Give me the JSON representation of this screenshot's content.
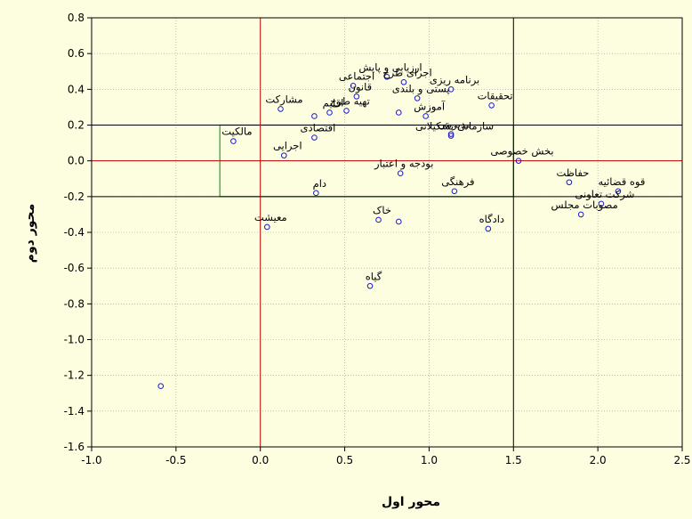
{
  "chart_data": {
    "type": "scatter",
    "title": "",
    "xlabel": "محور اول",
    "ylabel": "محور دوم",
    "xlim": [
      -1.0,
      2.5
    ],
    "ylim": [
      -1.6,
      0.8
    ],
    "x_ticks": [
      "-1.0",
      "-0.5",
      "0.0",
      "0.5",
      "1.0",
      "1.5",
      "2.0",
      "2.5"
    ],
    "y_ticks": [
      "0.8",
      "0.6",
      "0.4",
      "0.2",
      "0.0",
      "-0.2",
      "-0.4",
      "-0.6",
      "-0.8",
      "-1.0",
      "-1.2",
      "-1.4",
      "-1.6"
    ],
    "grid": true,
    "reference_lines": {
      "vertical_red": 0.0,
      "horizontal_red": 0.0,
      "vertical_black": 1.5,
      "horizontal_black": [
        0.2,
        -0.2
      ]
    },
    "highlight_box": {
      "x": [
        -0.24,
        1.5
      ],
      "y": [
        -0.2,
        0.2
      ],
      "color": "#2e9a2e"
    },
    "point_color": "#1a1ad6",
    "line_color_red": "#c00000",
    "points": [
      {
        "label": "ارزیابی و پایش",
        "x": 0.75,
        "y": 0.47
      },
      {
        "label": "اجرای طرح",
        "x": 0.85,
        "y": 0.44
      },
      {
        "label": "اجتماعی",
        "x": 0.55,
        "y": 0.42
      },
      {
        "label": "برنامه ریزی",
        "x": 1.13,
        "y": 0.4
      },
      {
        "label": "قانون",
        "x": 0.57,
        "y": 0.36
      },
      {
        "label": "پستی و بلندی",
        "x": 0.93,
        "y": 0.35
      },
      {
        "label": "تحقیقات",
        "x": 1.37,
        "y": 0.31
      },
      {
        "label": "مشارکت",
        "x": 0.12,
        "y": 0.29
      },
      {
        "label": "تهیه طرح",
        "x": 0.51,
        "y": 0.28
      },
      {
        "label": "اقلیم",
        "x": 0.41,
        "y": 0.27
      },
      {
        "label": "",
        "x": 0.82,
        "y": 0.27
      },
      {
        "label": "",
        "x": 0.32,
        "y": 0.25
      },
      {
        "label": "آموزش",
        "x": 0.98,
        "y": 0.25
      },
      {
        "label": "مدیریتی",
        "x": 1.13,
        "y": 0.15
      },
      {
        "label": "اقتصادی",
        "x": 0.32,
        "y": 0.13
      },
      {
        "label": "مالکیت",
        "x": -0.16,
        "y": 0.11
      },
      {
        "label": "سازمانی-تشکیلاتی",
        "x": 1.13,
        "y": 0.14
      },
      {
        "label": "اجرایی",
        "x": 0.14,
        "y": 0.03
      },
      {
        "label": "بخش خصوصی",
        "x": 1.53,
        "y": 0.0
      },
      {
        "label": "بودجه و اعتبار",
        "x": 0.83,
        "y": -0.07
      },
      {
        "label": "حفاظت",
        "x": 1.83,
        "y": -0.12
      },
      {
        "label": "قوه قضائیه",
        "x": 2.12,
        "y": -0.17
      },
      {
        "label": "فرهنگی",
        "x": 1.15,
        "y": -0.17
      },
      {
        "label": "دام",
        "x": 0.33,
        "y": -0.18
      },
      {
        "label": "شرکت تعاونی",
        "x": 2.02,
        "y": -0.24
      },
      {
        "label": "مصوبات مجلس",
        "x": 1.9,
        "y": -0.3
      },
      {
        "label": "خاک",
        "x": 0.7,
        "y": -0.33
      },
      {
        "label": "",
        "x": 0.82,
        "y": -0.34
      },
      {
        "label": "معیشت",
        "x": 0.04,
        "y": -0.37
      },
      {
        "label": "دادگاه",
        "x": 1.35,
        "y": -0.38
      },
      {
        "label": "گیاه",
        "x": 0.65,
        "y": -0.7
      },
      {
        "label": "",
        "x": -0.59,
        "y": -1.26
      }
    ]
  }
}
